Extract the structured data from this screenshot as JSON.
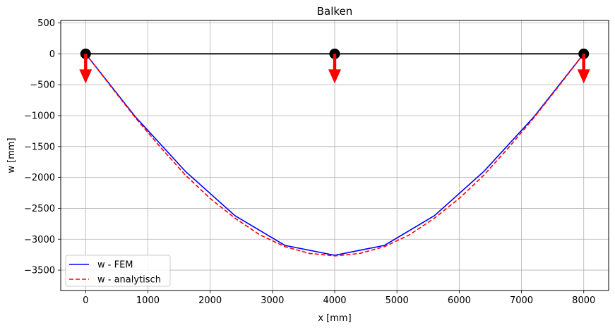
{
  "chart_data": {
    "type": "line",
    "title": "Balken",
    "xlabel": "x [mm]",
    "ylabel": "w [mm]",
    "xlim": [
      -400,
      8400
    ],
    "ylim": [
      -3830,
      540
    ],
    "xticks": [
      0,
      1000,
      2000,
      3000,
      4000,
      5000,
      6000,
      7000,
      8000
    ],
    "yticks": [
      500,
      0,
      -500,
      -1000,
      -1500,
      -2000,
      -2500,
      -3000,
      -3500
    ],
    "xtick_labels": [
      "0",
      "1000",
      "2000",
      "3000",
      "4000",
      "5000",
      "6000",
      "7000",
      "8000"
    ],
    "ytick_labels": [
      "500",
      "0",
      "−500",
      "−1000",
      "−1500",
      "−2000",
      "−2500",
      "−3000",
      "−3500"
    ],
    "grid": true,
    "legend_position": "lower-left",
    "beam": {
      "x": [
        0,
        8000
      ],
      "y": [
        0,
        0
      ],
      "color": "#000000"
    },
    "supports": {
      "x": [
        0,
        4000,
        8000
      ],
      "y": [
        0,
        0,
        0
      ],
      "color": "#000000"
    },
    "loads": {
      "x": [
        0,
        4000,
        8000
      ],
      "y_from": 0,
      "y_to": -480,
      "color": "#ff0000"
    },
    "series": [
      {
        "name": "w - FEM",
        "color": "#0000ff",
        "style": "solid",
        "x": [
          0,
          800,
          1600,
          2400,
          3200,
          4000,
          4800,
          5600,
          6400,
          7200,
          8000
        ],
        "y": [
          0,
          -1020,
          -1900,
          -2620,
          -3100,
          -3260,
          -3100,
          -2620,
          -1900,
          -1020,
          0
        ]
      },
      {
        "name": "w - analytisch",
        "color": "#ff0000",
        "style": "dashed",
        "x": [
          0,
          400,
          800,
          1200,
          1600,
          2000,
          2400,
          2800,
          3200,
          3600,
          4000,
          4400,
          4800,
          5200,
          5600,
          6000,
          6400,
          6800,
          7200,
          7600,
          8000
        ],
        "y": [
          0,
          -520,
          -1035,
          -1510,
          -1960,
          -2340,
          -2660,
          -2930,
          -3120,
          -3230,
          -3270,
          -3230,
          -3120,
          -2930,
          -2660,
          -2340,
          -1960,
          -1510,
          -1035,
          -520,
          0
        ]
      }
    ]
  }
}
